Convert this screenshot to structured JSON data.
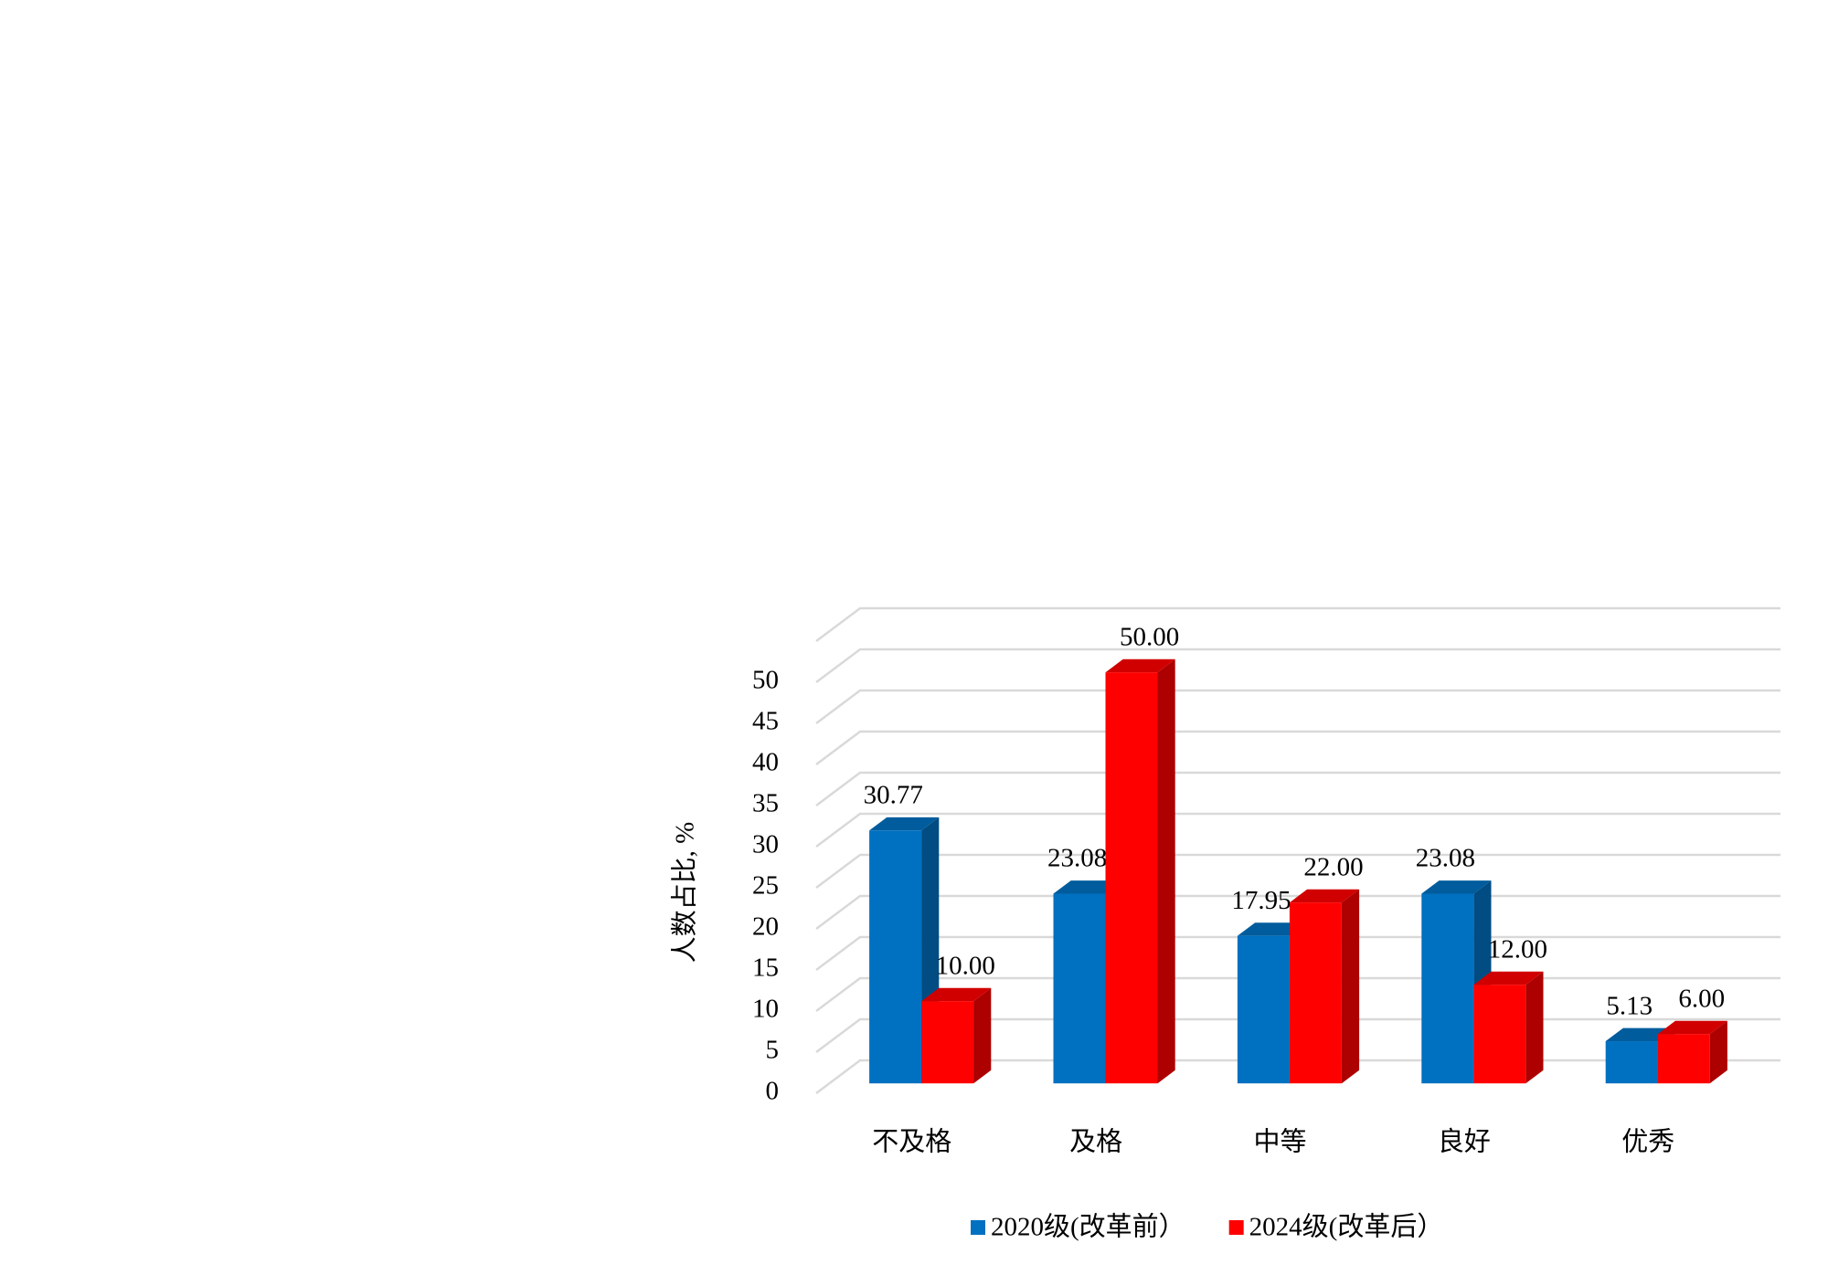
{
  "chart_data": {
    "type": "bar3d",
    "y_label": "人数占比, %",
    "categories": [
      "不及格",
      "及格",
      "中等",
      "良好",
      "优秀"
    ],
    "series": [
      {
        "name": "2020级(改革前）",
        "color": "#0070c0",
        "values": [
          30.77,
          23.08,
          17.95,
          23.08,
          5.13
        ],
        "value_labels": [
          "30.77",
          "23.08",
          "17.95",
          "23.08",
          "5.13"
        ]
      },
      {
        "name": "2024级(改革后）",
        "color": "#ff0000",
        "values": [
          10.0,
          50.0,
          22.0,
          12.0,
          6.0
        ],
        "value_labels": [
          "10.00",
          "50.00",
          "22.00",
          "12.00",
          "6.00"
        ]
      }
    ],
    "ylim": [
      0,
      55
    ],
    "yticks": [
      0,
      5,
      10,
      15,
      20,
      25,
      30,
      35,
      40,
      45,
      50
    ],
    "grid": true,
    "legend": "bottom"
  }
}
